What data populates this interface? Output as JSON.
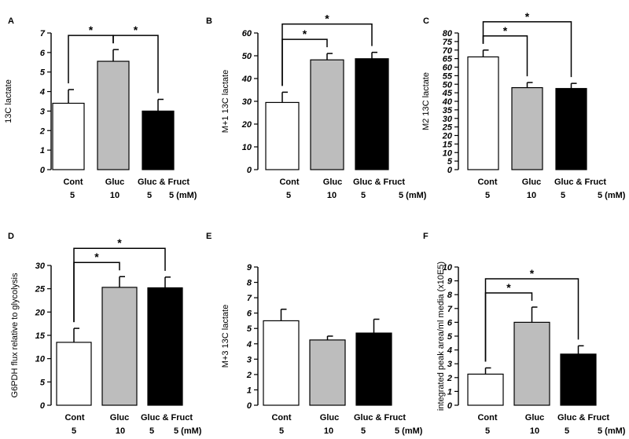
{
  "chart_data": [
    {
      "type": "bar",
      "panel_label": "A",
      "ylabel": "13C lactate",
      "ylim": [
        0,
        7
      ],
      "yticks": [
        0,
        1,
        2,
        3,
        4,
        5,
        6,
        7
      ],
      "categories": [
        "Cont",
        "Gluc",
        "Gluc & Fruct"
      ],
      "concentrations": [
        "5",
        "10",
        "5",
        "5 (mM)"
      ],
      "values": [
        3.4,
        5.55,
        3.0
      ],
      "errors": [
        0.7,
        0.6,
        0.6
      ],
      "colors": [
        "#ffffff",
        "#bdbdbd",
        "#000000"
      ],
      "significance": [
        {
          "from": 0,
          "to": 1,
          "label": "*"
        },
        {
          "from": 1,
          "to": 2,
          "label": "*"
        }
      ]
    },
    {
      "type": "bar",
      "panel_label": "B",
      "ylabel": "M+1 13C lactate",
      "ylim": [
        0,
        60
      ],
      "yticks": [
        0,
        10,
        20,
        30,
        40,
        50,
        60
      ],
      "categories": [
        "Cont",
        "Gluc",
        "Gluc & Fruct"
      ],
      "concentrations": [
        "5",
        "10",
        "5",
        "5 (mM)"
      ],
      "values": [
        29.5,
        48.2,
        48.7
      ],
      "errors": [
        4.5,
        2.8,
        2.8
      ],
      "colors": [
        "#ffffff",
        "#bdbdbd",
        "#000000"
      ],
      "significance": [
        {
          "from": 0,
          "to": 1,
          "label": "*"
        },
        {
          "from": 0,
          "to": 2,
          "label": "*"
        }
      ]
    },
    {
      "type": "bar",
      "panel_label": "C",
      "ylabel": "M2 13C lactate",
      "ylim": [
        0,
        80
      ],
      "yticks": [
        0,
        5,
        10,
        15,
        20,
        25,
        30,
        35,
        40,
        45,
        50,
        55,
        60,
        65,
        70,
        75,
        80
      ],
      "categories": [
        "Cont",
        "Gluc",
        "Gluc & Fruct"
      ],
      "concentrations": [
        "5",
        "10",
        "5",
        "5 (mM)"
      ],
      "values": [
        66,
        48,
        47.5
      ],
      "errors": [
        4,
        3,
        3
      ],
      "colors": [
        "#ffffff",
        "#bdbdbd",
        "#000000"
      ],
      "significance": [
        {
          "from": 0,
          "to": 1,
          "label": "*"
        },
        {
          "from": 0,
          "to": 2,
          "label": "*"
        }
      ]
    },
    {
      "type": "bar",
      "panel_label": "D",
      "ylabel": "G6PDH flux relative to glycolysis",
      "ylim": [
        0,
        30
      ],
      "yticks": [
        0,
        5,
        10,
        15,
        20,
        25,
        30
      ],
      "categories": [
        "Cont",
        "Gluc",
        "Gluc & Fruct"
      ],
      "concentrations": [
        "5",
        "10",
        "5",
        "5 (mM)"
      ],
      "values": [
        13.5,
        25.3,
        25.2
      ],
      "errors": [
        3.0,
        2.3,
        2.3
      ],
      "colors": [
        "#ffffff",
        "#bdbdbd",
        "#000000"
      ],
      "significance": [
        {
          "from": 0,
          "to": 1,
          "label": "*"
        },
        {
          "from": 0,
          "to": 2,
          "label": "*"
        }
      ]
    },
    {
      "type": "bar",
      "panel_label": "E",
      "ylabel": "M+3 13C lactate",
      "ylim": [
        0,
        9
      ],
      "yticks": [
        0,
        1,
        2,
        3,
        4,
        5,
        6,
        7,
        8,
        9
      ],
      "categories": [
        "Cont",
        "Gluc",
        "Gluc & Fruct"
      ],
      "concentrations": [
        "5",
        "10",
        "5",
        "5 (mM)"
      ],
      "values": [
        5.5,
        4.25,
        4.7
      ],
      "errors": [
        0.75,
        0.25,
        0.9
      ],
      "colors": [
        "#ffffff",
        "#bdbdbd",
        "#000000"
      ],
      "significance": []
    },
    {
      "type": "bar",
      "panel_label": "F",
      "ylabel": "integrated peak area/ml media (x10E5)",
      "ylim": [
        0,
        10
      ],
      "yticks": [
        0,
        1,
        2,
        3,
        4,
        5,
        6,
        7,
        8,
        9,
        10
      ],
      "categories": [
        "Cont",
        "Gluc",
        "Gluc & Fruct"
      ],
      "concentrations": [
        "5",
        "10",
        "5",
        "5 (mM)"
      ],
      "values": [
        2.25,
        6.0,
        3.7
      ],
      "errors": [
        0.45,
        1.1,
        0.6
      ],
      "colors": [
        "#ffffff",
        "#bdbdbd",
        "#000000"
      ],
      "significance": [
        {
          "from": 0,
          "to": 1,
          "label": "*"
        },
        {
          "from": 0,
          "to": 2,
          "label": "*"
        }
      ]
    }
  ]
}
